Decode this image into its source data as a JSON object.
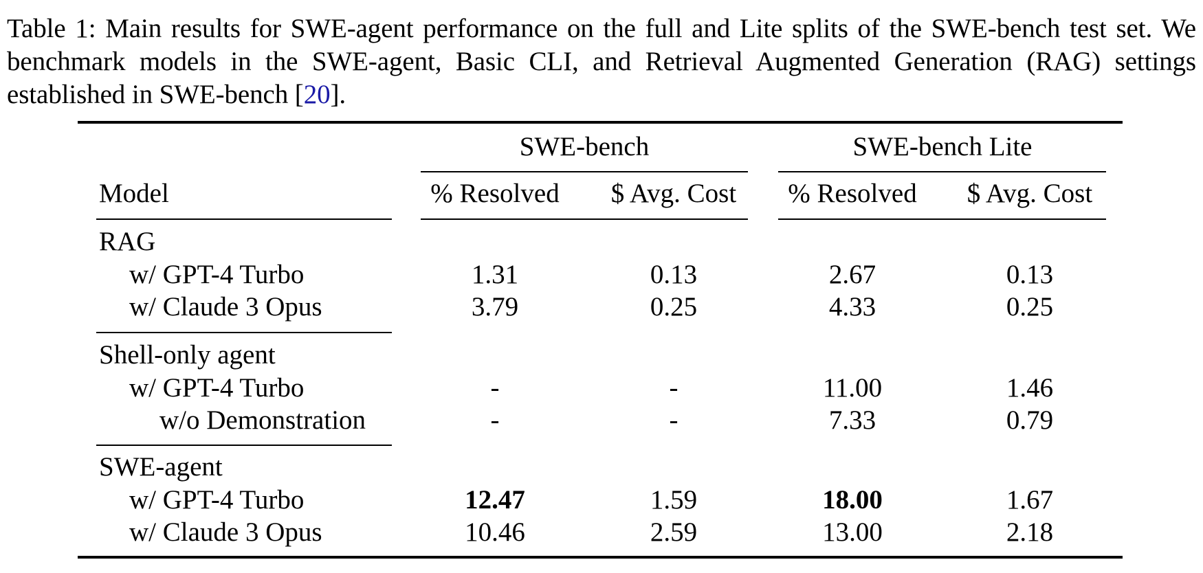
{
  "caption": {
    "label": "Table 1:",
    "text_before": "Main results for SWE-agent performance on the full and Lite splits of the SWE-bench test set. We benchmark models in the SWE-agent, Basic CLI, and Retrieval Augmented Generation (RAG) settings established in SWE-bench [",
    "citation": "20",
    "text_after": "]."
  },
  "table": {
    "model_header": "Model",
    "groups": [
      "SWE-bench",
      "SWE-bench Lite"
    ],
    "columns": [
      "% Resolved",
      "$ Avg. Cost",
      "% Resolved",
      "$ Avg. Cost"
    ],
    "sections": [
      {
        "name": "RAG",
        "rows": [
          {
            "label": "w/ GPT-4 Turbo",
            "values": [
              "1.31",
              "0.13",
              "2.67",
              "0.13"
            ]
          },
          {
            "label": "w/ Claude 3 Opus",
            "values": [
              "3.79",
              "0.25",
              "4.33",
              "0.25"
            ]
          }
        ]
      },
      {
        "name": "Shell-only agent",
        "rows": [
          {
            "label": "w/ GPT-4 Turbo",
            "values": [
              "-",
              "-",
              "11.00",
              "1.46"
            ]
          },
          {
            "label": "w/o Demonstration",
            "values": [
              "-",
              "-",
              "7.33",
              "0.79"
            ]
          }
        ]
      },
      {
        "name": "SWE-agent",
        "rows": [
          {
            "label": "w/ GPT-4 Turbo",
            "values": [
              "12.47",
              "1.59",
              "18.00",
              "1.67"
            ]
          },
          {
            "label": "w/ Claude 3 Opus",
            "values": [
              "10.46",
              "2.59",
              "13.00",
              "2.18"
            ]
          }
        ]
      }
    ]
  }
}
